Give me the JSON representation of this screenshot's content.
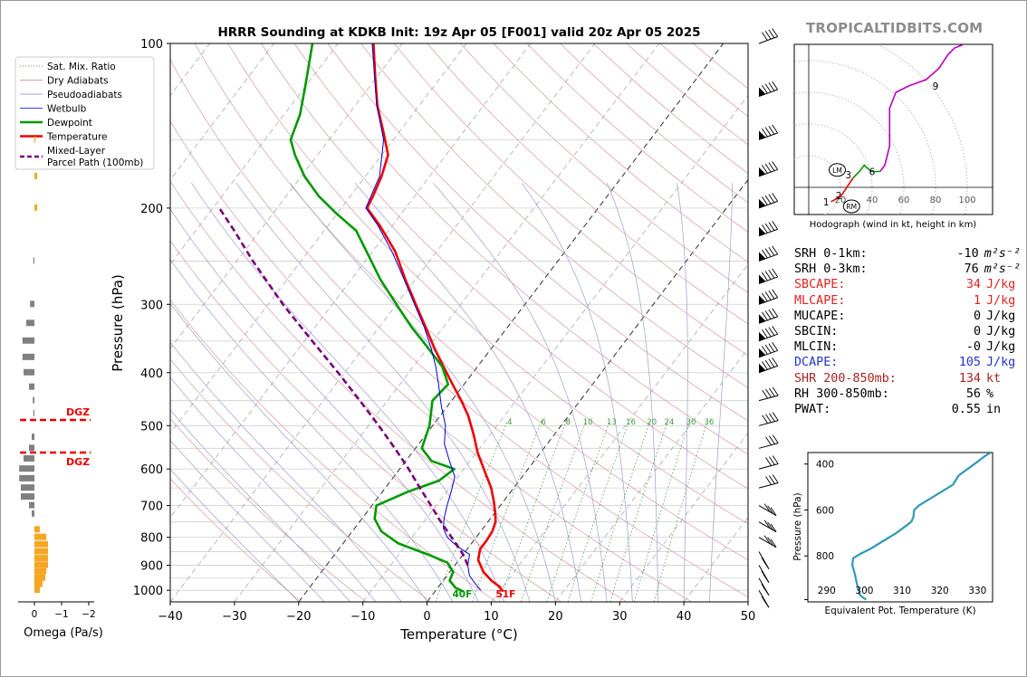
{
  "title": "HRRR Sounding at KDKB Init: 19z Apr 05 [F001] valid 20z Apr 05 2025",
  "brand": "TROPICALTIDBITS.COM",
  "chart_data": [
    {
      "type": "line",
      "name": "skew-t",
      "xlabel": "Temperature (°C)",
      "ylabel": "Pressure (hPa)",
      "xlim": [
        -40,
        50
      ],
      "ylim": [
        1050,
        100
      ],
      "xticks": [
        "−40",
        "−30",
        "−20",
        "−10",
        "0",
        "10",
        "20",
        "30",
        "40",
        "50"
      ],
      "yticks": [
        "100",
        "200",
        "300",
        "400",
        "500",
        "600",
        "700",
        "800",
        "900",
        "1000"
      ],
      "ytick_values": [
        100,
        200,
        300,
        400,
        500,
        600,
        700,
        800,
        900,
        1000
      ],
      "legend": {
        "placement": "upper-left",
        "items": [
          {
            "label": "Sat. Mix. Ratio",
            "color": "#2a8a2a",
            "style": "dotted"
          },
          {
            "label": "Dry Adiabats",
            "color": "#d08080",
            "style": "solid"
          },
          {
            "label": "Pseudoadiabats",
            "color": "#8888cc",
            "style": "solid"
          },
          {
            "label": "Wetbulb",
            "color": "#0000dd",
            "style": "solid"
          },
          {
            "label": "Dewpoint",
            "color": "#009900",
            "style": "solid"
          },
          {
            "label": "Temperature",
            "color": "#ee0000",
            "style": "solid"
          },
          {
            "label": "Mixed-Layer\nParcel Path (100mb)",
            "color": "#7a007a",
            "style": "dashed"
          }
        ]
      },
      "mixing_ratio_labels": [
        "4",
        "6",
        "8",
        "10",
        "13",
        "16",
        "20",
        "24",
        "30",
        "36"
      ],
      "mixing_ratio_values": [
        4,
        6,
        8,
        10,
        13,
        16,
        20,
        24,
        30,
        36
      ],
      "surface_temp_label": "51F",
      "surface_dewpoint_label": "40F",
      "series": [
        {
          "name": "Temperature",
          "color": "#ee0000",
          "points": [
            [
              1005,
              10.6
            ],
            [
              985,
              9.5
            ],
            [
              960,
              7.5
            ],
            [
              925,
              5.2
            ],
            [
              880,
              3.0
            ],
            [
              840,
              2.0
            ],
            [
              810,
              2.0
            ],
            [
              780,
              1.8
            ],
            [
              750,
              1.2
            ],
            [
              720,
              0.0
            ],
            [
              690,
              -1.4
            ],
            [
              650,
              -3.5
            ],
            [
              610,
              -6.2
            ],
            [
              560,
              -9.8
            ],
            [
              520,
              -12.5
            ],
            [
              480,
              -15.6
            ],
            [
              450,
              -18.5
            ],
            [
              420,
              -21.8
            ],
            [
              390,
              -25.3
            ],
            [
              360,
              -29.0
            ],
            [
              330,
              -32.8
            ],
            [
              300,
              -37.0
            ],
            [
              270,
              -41.6
            ],
            [
              240,
              -46.5
            ],
            [
              215,
              -52.0
            ],
            [
              200,
              -56.0
            ],
            [
              190,
              -56.5
            ],
            [
              175,
              -57.5
            ],
            [
              160,
              -59.0
            ],
            [
              145,
              -62.5
            ],
            [
              130,
              -66.5
            ],
            [
              115,
              -70.3
            ],
            [
              100,
              -74.5
            ]
          ]
        },
        {
          "name": "Dewpoint",
          "color": "#009900",
          "points": [
            [
              1005,
              4.4
            ],
            [
              990,
              2.8
            ],
            [
              960,
              1.0
            ],
            [
              925,
              0.5
            ],
            [
              890,
              -1.5
            ],
            [
              860,
              -5.5
            ],
            [
              820,
              -11.5
            ],
            [
              780,
              -15.5
            ],
            [
              740,
              -18.0
            ],
            [
              700,
              -19.3
            ],
            [
              660,
              -16.0
            ],
            [
              630,
              -12.5
            ],
            [
              600,
              -11.5
            ],
            [
              580,
              -16.0
            ],
            [
              550,
              -19.0
            ],
            [
              500,
              -20.5
            ],
            [
              450,
              -23.0
            ],
            [
              420,
              -22.5
            ],
            [
              390,
              -25.5
            ],
            [
              360,
              -30.0
            ],
            [
              330,
              -35.0
            ],
            [
              300,
              -40.0
            ],
            [
              270,
              -45.5
            ],
            [
              245,
              -50.0
            ],
            [
              220,
              -55.0
            ],
            [
              205,
              -60.0
            ],
            [
              190,
              -65.0
            ],
            [
              175,
              -69.5
            ],
            [
              160,
              -73.5
            ],
            [
              150,
              -76.0
            ],
            [
              135,
              -77.5
            ],
            [
              120,
              -80.0
            ],
            [
              100,
              -84.0
            ]
          ]
        },
        {
          "name": "Wetbulb",
          "color": "#0000dd",
          "points": [
            [
              1000,
              7.0
            ],
            [
              975,
              5.5
            ],
            [
              940,
              3.5
            ],
            [
              900,
              2.0
            ],
            [
              860,
              1.0
            ],
            [
              830,
              -2.0
            ],
            [
              800,
              -4.5
            ],
            [
              770,
              -6.2
            ],
            [
              740,
              -7.2
            ],
            [
              700,
              -8.3
            ],
            [
              660,
              -9.3
            ],
            [
              620,
              -10.5
            ],
            [
              580,
              -13.2
            ],
            [
              540,
              -16.0
            ],
            [
              500,
              -18.0
            ],
            [
              460,
              -21.0
            ],
            [
              420,
              -24.0
            ],
            [
              390,
              -26.5
            ],
            [
              360,
              -29.5
            ],
            [
              330,
              -33.0
            ],
            [
              300,
              -37.2
            ],
            [
              270,
              -41.8
            ],
            [
              240,
              -47.0
            ],
            [
              215,
              -52.3
            ],
            [
              200,
              -56.2
            ],
            [
              175,
              -57.8
            ],
            [
              150,
              -61.5
            ],
            [
              130,
              -66.6
            ],
            [
              100,
              -74.7
            ]
          ]
        },
        {
          "name": "Mixed-Layer Parcel Path (100mb)",
          "color": "#7a007a",
          "dashed": true,
          "points": [
            [
              900,
              2.0
            ],
            [
              860,
              0.0
            ],
            [
              820,
              -2.5
            ],
            [
              780,
              -5.2
            ],
            [
              740,
              -8.0
            ],
            [
              700,
              -10.8
            ],
            [
              650,
              -14.6
            ],
            [
              600,
              -18.6
            ],
            [
              550,
              -23.2
            ],
            [
              500,
              -28.4
            ],
            [
              450,
              -34.3
            ],
            [
              400,
              -41.0
            ],
            [
              350,
              -48.8
            ],
            [
              300,
              -57.7
            ],
            [
              250,
              -67.5
            ],
            [
              220,
              -74.0
            ],
            [
              200,
              -79.0
            ]
          ]
        }
      ]
    },
    {
      "type": "bar",
      "name": "omega",
      "xlabel": "Omega (Pa/s)",
      "xticks": [
        "0",
        "−1",
        "−2"
      ],
      "xtick_values": [
        0,
        -1,
        -2
      ],
      "dgz_label": "DGZ",
      "dgz_levels": [
        488,
        560
      ],
      "dgz_color": "#ee0000",
      "positive_color": "#f5a623",
      "negative_color": "#808080",
      "levels": [
        1000,
        975,
        950,
        925,
        900,
        875,
        850,
        825,
        800,
        775,
        750,
        725,
        700,
        675,
        650,
        625,
        600,
        575,
        550,
        525,
        500,
        475,
        450,
        425,
        400,
        375,
        350,
        325,
        300,
        275,
        250,
        225,
        200,
        175,
        150,
        125,
        100
      ],
      "values": [
        0.1,
        0.15,
        0.2,
        0.22,
        0.25,
        0.25,
        0.25,
        0.25,
        0.22,
        0.1,
        0,
        -0.05,
        -0.1,
        -0.25,
        -0.25,
        -0.28,
        -0.28,
        -0.2,
        -0.1,
        -0.05,
        0,
        -0.02,
        -0.03,
        -0.1,
        -0.2,
        -0.22,
        -0.22,
        -0.15,
        -0.08,
        0,
        -0.02,
        0,
        0.05,
        0.05,
        0.02,
        0,
        0
      ]
    },
    {
      "type": "line",
      "name": "hodograph",
      "xlabel": "Hodograph (wind in kt, height in km)",
      "ring_labels": [
        "20",
        "40",
        "60",
        "80",
        "100"
      ],
      "ring_values": [
        20,
        40,
        60,
        80,
        100
      ],
      "height_labels": [
        "1",
        "2",
        "3",
        "6",
        "9"
      ],
      "height_points": [
        [
          11,
          -9
        ],
        [
          19,
          -5
        ],
        [
          25,
          8
        ],
        [
          40,
          10
        ],
        [
          80,
          64
        ]
      ],
      "storm_motion": [
        {
          "label": "LM",
          "u": 18,
          "v": 11
        },
        {
          "label": "RM",
          "u": 27,
          "v": -12
        }
      ],
      "segments": [
        {
          "color": "#ee0000",
          "points": [
            [
              14,
              -9
            ],
            [
              20,
              -6
            ],
            [
              22,
              -3
            ],
            [
              26,
              3
            ],
            [
              28,
              6
            ]
          ]
        },
        {
          "color": "#009900",
          "points": [
            [
              28,
              6
            ],
            [
              32,
              10
            ],
            [
              35,
              14
            ],
            [
              37,
              12
            ],
            [
              40,
              10
            ],
            [
              45,
              10
            ]
          ]
        },
        {
          "color": "#bb00bb",
          "points": [
            [
              45,
              10
            ],
            [
              48,
              14
            ],
            [
              51,
              26
            ],
            [
              51,
              38
            ],
            [
              51,
              50
            ],
            [
              55,
              60
            ],
            [
              63,
              64
            ],
            [
              74,
              68
            ],
            [
              82,
              75
            ],
            [
              88,
              84
            ],
            [
              92,
              88
            ],
            [
              97,
              90
            ],
            [
              104,
              96
            ]
          ]
        },
        {
          "color": "#3333cc",
          "points": [
            [
              104,
              96
            ],
            [
              108,
              110
            ],
            [
              112,
              118
            ],
            [
              118,
              124
            ],
            [
              120,
              128
            ],
            [
              124,
              132
            ]
          ]
        }
      ]
    },
    {
      "type": "line",
      "name": "theta-e",
      "xlabel": "Equivalent Pot. Temperature (K)",
      "ylabel": "Pressure (hPa)",
      "xlim": [
        285,
        334
      ],
      "ylim": [
        1000,
        350
      ],
      "xticks": [
        "290",
        "300",
        "310",
        "320",
        "330"
      ],
      "xtick_values": [
        290,
        300,
        310,
        320,
        330
      ],
      "yticks": [
        "400",
        "600",
        "800"
      ],
      "ytick_values": [
        400,
        600,
        800
      ],
      "color": "#2e9ab8",
      "points": [
        [
          990,
          300.5
        ],
        [
          980,
          299.5
        ],
        [
          970,
          298.8
        ],
        [
          950,
          298.5
        ],
        [
          920,
          298.0
        ],
        [
          880,
          297.5
        ],
        [
          840,
          296.8
        ],
        [
          810,
          297.0
        ],
        [
          790,
          299.0
        ],
        [
          770,
          301.5
        ],
        [
          740,
          304.5
        ],
        [
          700,
          308.5
        ],
        [
          670,
          311.0
        ],
        [
          650,
          312.5
        ],
        [
          630,
          313.0
        ],
        [
          600,
          313.2
        ],
        [
          580,
          314.5
        ],
        [
          550,
          317.5
        ],
        [
          520,
          320.5
        ],
        [
          490,
          323.5
        ],
        [
          450,
          325.0
        ],
        [
          420,
          327.5
        ],
        [
          390,
          330.0
        ],
        [
          365,
          332.0
        ],
        [
          350,
          333.5
        ]
      ]
    }
  ],
  "stats": [
    {
      "label": "SRH 0-1km:",
      "value": "-10",
      "unit": "m²s⁻²",
      "color": "#000000"
    },
    {
      "label": "SRH 0-3km:",
      "value": "76",
      "unit": "m²s⁻²",
      "color": "#000000"
    },
    {
      "label": "SBCAPE:",
      "value": "34",
      "unit": "J/kg",
      "color": "#dd2222"
    },
    {
      "label": "MLCAPE:",
      "value": "1",
      "unit": "J/kg",
      "color": "#dd2222"
    },
    {
      "label": "MUCAPE:",
      "value": "0",
      "unit": "J/kg",
      "color": "#000000"
    },
    {
      "label": "SBCIN:",
      "value": "0",
      "unit": "J/kg",
      "color": "#000000"
    },
    {
      "label": "MLCIN:",
      "value": "-0",
      "unit": "J/kg",
      "color": "#000000"
    },
    {
      "label": "DCAPE:",
      "value": "105",
      "unit": "J/kg",
      "color": "#2233cc"
    },
    {
      "label": "SHR 200-850mb:",
      "value": "134",
      "unit": "kt",
      "color": "#aa2222"
    },
    {
      "label": "RH 300-850mb:",
      "value": "56",
      "unit": "%",
      "color": "#000000"
    },
    {
      "label": "PWAT:",
      "value": "0.55",
      "unit": "in",
      "color": "#000000"
    }
  ]
}
